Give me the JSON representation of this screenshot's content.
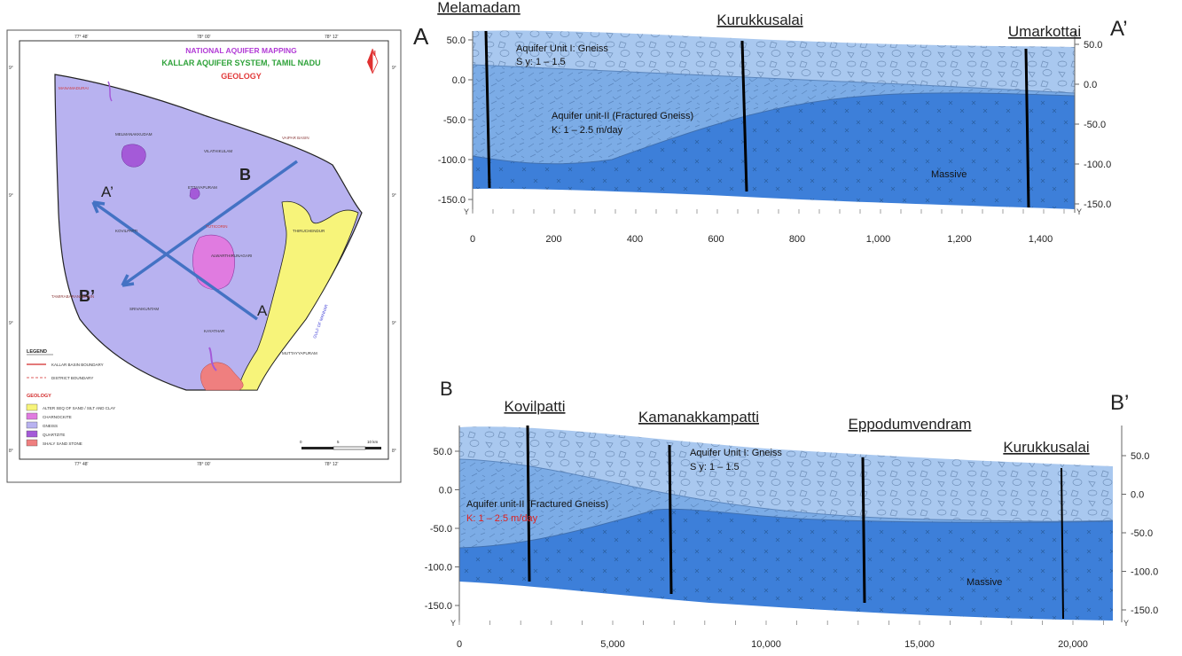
{
  "map": {
    "title_line1": "NATIONAL AQUIFER MAPPING",
    "title_line2": "KALLAR AQUIFER SYSTEM, TAMIL NADU",
    "title_line3": "GEOLOGY",
    "north_label": "N",
    "top_ticks": [
      "77° 48'",
      "78° 00'",
      "78° 12'"
    ],
    "bottom_ticks": [
      "77° 48'",
      "78° 00'",
      "78° 12'"
    ],
    "left_ticks": [
      "9°",
      "9°",
      "9°",
      "8°"
    ],
    "right_ticks": [
      "9°",
      "9°",
      "9°",
      "8°"
    ],
    "places": [
      "MANAMADURAI",
      "MELMANAKKUDAM",
      "VILATHIKULAM",
      "ETTAYAPURAM",
      "VAIPAR BASIN",
      "KOVILPATTI",
      "TUTICORIN",
      "TAMIRABARANI BASIN",
      "THIRUCHENDUR",
      "ALWARTHIRUNAGARI",
      "SRIVAIKUNTAM",
      "KAYATHAR",
      "GULF OF MANNAR",
      "MUTTAYYAPURAM"
    ],
    "section_labels": {
      "a": "A",
      "a_prime": "A’",
      "b": "B",
      "b_prime": "B’"
    },
    "legend": {
      "heading": "LEGEND",
      "items": [
        "KALLAR BASIN BOUNDARY",
        "DISTRICT BOUNDARY"
      ],
      "geology_heading": "GEOLOGY",
      "geology_items": [
        {
          "label": "ALTER SEQ OF SAND / SILT AND CLAY",
          "color": "#f7f47a"
        },
        {
          "label": "CHARNOCKITE",
          "color": "#e07be0"
        },
        {
          "label": "GNEISS",
          "color": "#b8b2f0"
        },
        {
          "label": "QUARTZITE",
          "color": "#a45ad8"
        },
        {
          "label": "SHALY SAND STONE",
          "color": "#ef7f7f"
        }
      ]
    },
    "scale": [
      "0",
      "5",
      "10 km"
    ],
    "colors": {
      "gneiss": "#b8b2f0",
      "sand": "#f7f47a",
      "charnockite": "#e07be0",
      "quartzite": "#a45ad8",
      "shale": "#ef7f7f",
      "section_line": "#4472c4"
    }
  },
  "section_a": {
    "start_label": "A",
    "end_label": "A’",
    "wells": [
      "Melamadam",
      "Kurukkusalai",
      "Umarkottai"
    ],
    "unit1_title": "Aquifer Unit I: Gneiss",
    "unit1_param": "S y: 1 – 1.5",
    "unit2_title": "Aquifer unit-II (Fractured  Gneiss)",
    "unit2_param": "K:  1 – 2.5 m/day",
    "massive_label": "Massive",
    "y_ticks_left": [
      "50.0",
      "0.0",
      "-50.0",
      "-100.0",
      "-150.0"
    ],
    "y_ticks_right": [
      "50.0",
      "0.0",
      "-50.0",
      "-100.0",
      "-150.0"
    ],
    "x_ticks": [
      "0",
      "200",
      "400",
      "600",
      "800",
      "1,000",
      "1,200",
      "1,400"
    ],
    "axis_y_label": "Y"
  },
  "section_b": {
    "start_label": "B",
    "end_label": "B’",
    "wells": [
      "Kovilpatti",
      "Kamanakkampatti",
      "Eppodumvendram",
      "Kurukkusalai"
    ],
    "unit1_title": "Aquifer Unit I: Gneiss",
    "unit1_param": "S y: 1 – 1.5",
    "unit2_title": "Aquifer unit-II (Fractured  Gneiss)",
    "unit2_param": "K:  1 – 2.5 m/day",
    "massive_label": "Massive",
    "y_ticks_left": [
      "50.0",
      "0.0",
      "-50.0",
      "-100.0",
      "-150.0"
    ],
    "y_ticks_right": [
      "50.0",
      "0.0",
      "-50.0",
      "-100.0",
      "-150.0"
    ],
    "x_ticks": [
      "0",
      "5,000",
      "10,000",
      "15,000",
      "20,000"
    ],
    "axis_y_label": "Y"
  },
  "colors": {
    "weathered": "#a9c8ef",
    "fractured": "#7cace6",
    "massive": "#3d7fd9",
    "param_highlight": "#e0201e"
  }
}
